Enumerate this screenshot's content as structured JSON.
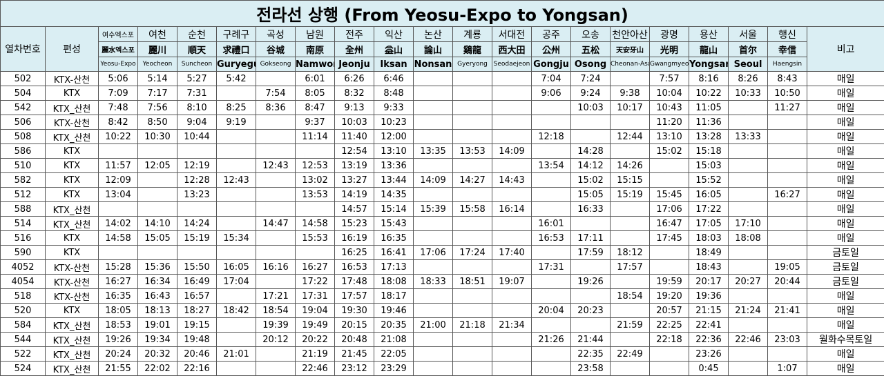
{
  "title": "전라선 상행 (From Yeosu-Expo to Yongsan)",
  "columns": {
    "train_no": "열차번호",
    "formation": "편성",
    "note": "비고"
  },
  "stations": [
    {
      "ko": "여수엑스포",
      "hanja": "麗水엑스포",
      "en": "Yeosu-Expo"
    },
    {
      "ko": "여천",
      "hanja": "麗川",
      "en": "Yeocheon"
    },
    {
      "ko": "순천",
      "hanja": "順天",
      "en": "Suncheon"
    },
    {
      "ko": "구례구",
      "hanja": "求禮口",
      "en": "Guryegu"
    },
    {
      "ko": "곡성",
      "hanja": "谷城",
      "en": "Gokseong"
    },
    {
      "ko": "남원",
      "hanja": "南原",
      "en": "Namwon"
    },
    {
      "ko": "전주",
      "hanja": "全州",
      "en": "Jeonju"
    },
    {
      "ko": "익산",
      "hanja": "益山",
      "en": "Iksan"
    },
    {
      "ko": "논산",
      "hanja": "論山",
      "en": "Nonsan"
    },
    {
      "ko": "계룡",
      "hanja": "鷄龍",
      "en": "Gyeryong"
    },
    {
      "ko": "서대전",
      "hanja": "西大田",
      "en": "Seodaejeon"
    },
    {
      "ko": "공주",
      "hanja": "公州",
      "en": "Gongju"
    },
    {
      "ko": "오송",
      "hanja": "五松",
      "en": "Osong"
    },
    {
      "ko": "천안아산",
      "hanja": "天安牙山",
      "en": "Cheonan-Asan"
    },
    {
      "ko": "광명",
      "hanja": "光明",
      "en": "Gwangmyeong"
    },
    {
      "ko": "용산",
      "hanja": "龍山",
      "en": "Yongsan"
    },
    {
      "ko": "서울",
      "hanja": "首尔",
      "en": "Seoul"
    },
    {
      "ko": "행신",
      "hanja": "幸信",
      "en": "Haengsin"
    }
  ],
  "rows": [
    {
      "train": "502",
      "formation": "KTX-산천",
      "times": [
        "5:06",
        "5:14",
        "5:27",
        "5:42",
        null,
        "6:01",
        "6:26",
        "6:46",
        null,
        null,
        null,
        "7:04",
        "7:24",
        null,
        "7:57",
        "8:16",
        "8:26",
        "8:43"
      ],
      "note": "매일"
    },
    {
      "train": "504",
      "formation": "KTX",
      "times": [
        "7:09",
        "7:17",
        "7:31",
        null,
        "7:54",
        "8:05",
        "8:32",
        "8:48",
        null,
        null,
        null,
        "9:06",
        "9:24",
        "9:38",
        "10:04",
        "10:22",
        "10:33",
        "10:50"
      ],
      "note": "매일"
    },
    {
      "train": "542",
      "formation": "KTX_산천",
      "times": [
        "7:48",
        "7:56",
        "8:10",
        "8:25",
        "8:36",
        "8:47",
        "9:13",
        "9:33",
        null,
        null,
        null,
        null,
        "10:03",
        "10:17",
        "10:43",
        "11:05",
        null,
        "11:27"
      ],
      "note": "매일"
    },
    {
      "train": "506",
      "formation": "KTX-산천",
      "times": [
        "8:42",
        "8:50",
        "9:04",
        "9:19",
        null,
        "9:37",
        "10:03",
        "10:23",
        null,
        null,
        null,
        null,
        null,
        null,
        "11:20",
        "11:36",
        null,
        null
      ],
      "note": "매일"
    },
    {
      "train": "508",
      "formation": "KTX_산천",
      "times": [
        "10:22",
        "10:30",
        "10:44",
        null,
        null,
        "11:14",
        "11:40",
        "12:00",
        null,
        null,
        null,
        "12:18",
        null,
        "12:44",
        "13:10",
        "13:28",
        "13:33",
        null
      ],
      "note": "매일"
    },
    {
      "train": "586",
      "formation": "KTX",
      "times": [
        null,
        null,
        null,
        null,
        null,
        null,
        "12:54",
        "13:10",
        "13:35",
        "13:53",
        "14:09",
        null,
        "14:28",
        null,
        "15:02",
        "15:18",
        null,
        null
      ],
      "note": "매일"
    },
    {
      "train": "510",
      "formation": "KTX",
      "times": [
        "11:57",
        "12:05",
        "12:19",
        null,
        "12:43",
        "12:53",
        "13:19",
        "13:36",
        null,
        null,
        null,
        "13:54",
        "14:12",
        "14:26",
        null,
        "15:03",
        null,
        null
      ],
      "note": "매일"
    },
    {
      "train": "582",
      "formation": "KTX",
      "times": [
        "12:09",
        null,
        "12:28",
        "12:43",
        null,
        "13:02",
        "13:27",
        "13:44",
        "14:09",
        "14:27",
        "14:43",
        null,
        "15:02",
        "15:15",
        null,
        "15:52",
        null,
        null
      ],
      "note": "매일"
    },
    {
      "train": "512",
      "formation": "KTX",
      "times": [
        "13:04",
        null,
        "13:23",
        null,
        null,
        "13:53",
        "14:19",
        "14:35",
        null,
        null,
        null,
        null,
        "15:05",
        "15:19",
        "15:45",
        "16:05",
        null,
        "16:27"
      ],
      "note": "매일"
    },
    {
      "train": "588",
      "formation": "KTX_산천",
      "times": [
        null,
        null,
        null,
        null,
        null,
        null,
        "14:57",
        "15:14",
        "15:39",
        "15:58",
        "16:14",
        null,
        "16:33",
        null,
        "17:06",
        "17:22",
        null,
        null
      ],
      "note": "매일"
    },
    {
      "train": "514",
      "formation": "KTX_산천",
      "times": [
        "14:02",
        "14:10",
        "14:24",
        null,
        "14:47",
        "14:58",
        "15:23",
        "15:43",
        null,
        null,
        null,
        "16:01",
        null,
        null,
        "16:47",
        "17:05",
        "17:10",
        null
      ],
      "note": "매일"
    },
    {
      "train": "516",
      "formation": "KTX",
      "times": [
        "14:58",
        "15:05",
        "15:19",
        "15:34",
        null,
        "15:53",
        "16:19",
        "16:35",
        null,
        null,
        null,
        "16:53",
        "17:11",
        null,
        "17:45",
        "18:03",
        "18:08",
        null
      ],
      "note": "매일"
    },
    {
      "train": "590",
      "formation": "KTX",
      "times": [
        null,
        null,
        null,
        null,
        null,
        null,
        "16:25",
        "16:41",
        "17:06",
        "17:24",
        "17:40",
        null,
        "17:59",
        "18:12",
        null,
        "18:49",
        null,
        null
      ],
      "note": "금토일"
    },
    {
      "train": "4052",
      "formation": "KTX-산천",
      "times": [
        "15:28",
        "15:36",
        "15:50",
        "16:05",
        "16:16",
        "16:27",
        "16:53",
        "17:13",
        null,
        null,
        null,
        "17:31",
        null,
        "17:57",
        null,
        "18:43",
        null,
        "19:05"
      ],
      "note": "금토일"
    },
    {
      "train": "4054",
      "formation": "KTX-산천",
      "times": [
        "16:27",
        "16:34",
        "16:49",
        "17:04",
        null,
        "17:22",
        "17:48",
        "18:08",
        "18:33",
        "18:51",
        "19:07",
        null,
        "19:26",
        null,
        "19:59",
        "20:17",
        "20:27",
        "20:44"
      ],
      "note": "금토일"
    },
    {
      "train": "518",
      "formation": "KTX-산천",
      "times": [
        "16:35",
        "16:43",
        "16:57",
        null,
        "17:21",
        "17:31",
        "17:57",
        "18:17",
        null,
        null,
        null,
        null,
        null,
        "18:54",
        "19:20",
        "19:36",
        null,
        null
      ],
      "note": "매일"
    },
    {
      "train": "520",
      "formation": "KTX",
      "times": [
        "18:05",
        "18:13",
        "18:27",
        "18:42",
        "18:54",
        "19:04",
        "19:30",
        "19:46",
        null,
        null,
        null,
        "20:04",
        "20:23",
        null,
        "20:57",
        "21:15",
        "21:24",
        "21:41"
      ],
      "note": "매일"
    },
    {
      "train": "584",
      "formation": "KTX_산천",
      "times": [
        "18:53",
        "19:01",
        "19:15",
        null,
        "19:39",
        "19:49",
        "20:15",
        "20:35",
        "21:00",
        "21:18",
        "21:34",
        null,
        null,
        "21:59",
        "22:25",
        "22:41",
        null,
        null
      ],
      "note": "매일"
    },
    {
      "train": "544",
      "formation": "KTX_산천",
      "times": [
        "19:26",
        "19:34",
        "19:48",
        null,
        "20:12",
        "20:22",
        "20:48",
        "21:08",
        null,
        null,
        null,
        "21:26",
        "21:44",
        null,
        "22:18",
        "22:36",
        "22:46",
        "23:03"
      ],
      "note": "월화수목토일"
    },
    {
      "train": "522",
      "formation": "KTX_산천",
      "times": [
        "20:24",
        "20:32",
        "20:46",
        "21:01",
        null,
        "21:19",
        "21:45",
        "22:05",
        null,
        null,
        null,
        null,
        "22:35",
        "22:49",
        null,
        "23:26",
        null,
        null
      ],
      "note": "매일"
    },
    {
      "train": "524",
      "formation": "KTX_산천",
      "times": [
        "21:55",
        "22:02",
        "22:16",
        null,
        null,
        "22:46",
        "23:12",
        "23:29",
        null,
        null,
        null,
        null,
        "23:58",
        null,
        null,
        "0:45",
        null,
        "1:07"
      ],
      "note": "매일"
    }
  ]
}
